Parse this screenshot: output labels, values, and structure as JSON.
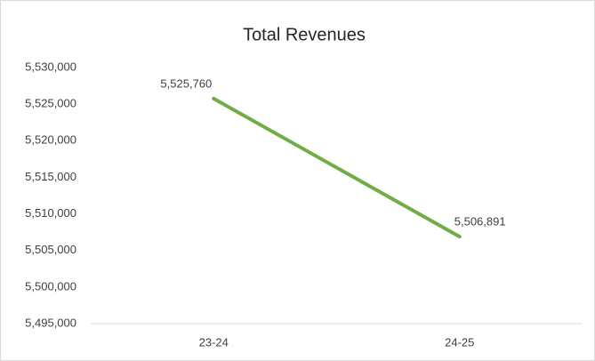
{
  "chart_data": {
    "type": "line",
    "title": "Total Revenues",
    "categories": [
      "23-24",
      "24-25"
    ],
    "series": [
      {
        "name": "Total Revenues",
        "color": "#70ad47",
        "values": [
          5525760,
          5506891
        ],
        "value_labels": [
          "5,525,760",
          "5,506,891"
        ]
      }
    ],
    "ylim": [
      5495000,
      5530000
    ],
    "yticks": [
      {
        "value": 5495000,
        "label": "5,495,000"
      },
      {
        "value": 5500000,
        "label": "5,500,000"
      },
      {
        "value": 5505000,
        "label": "5,505,000"
      },
      {
        "value": 5510000,
        "label": "5,510,000"
      },
      {
        "value": 5515000,
        "label": "5,515,000"
      },
      {
        "value": 5520000,
        "label": "5,520,000"
      },
      {
        "value": 5525000,
        "label": "5,525,000"
      },
      {
        "value": 5530000,
        "label": "5,530,000"
      }
    ],
    "grid": false
  }
}
